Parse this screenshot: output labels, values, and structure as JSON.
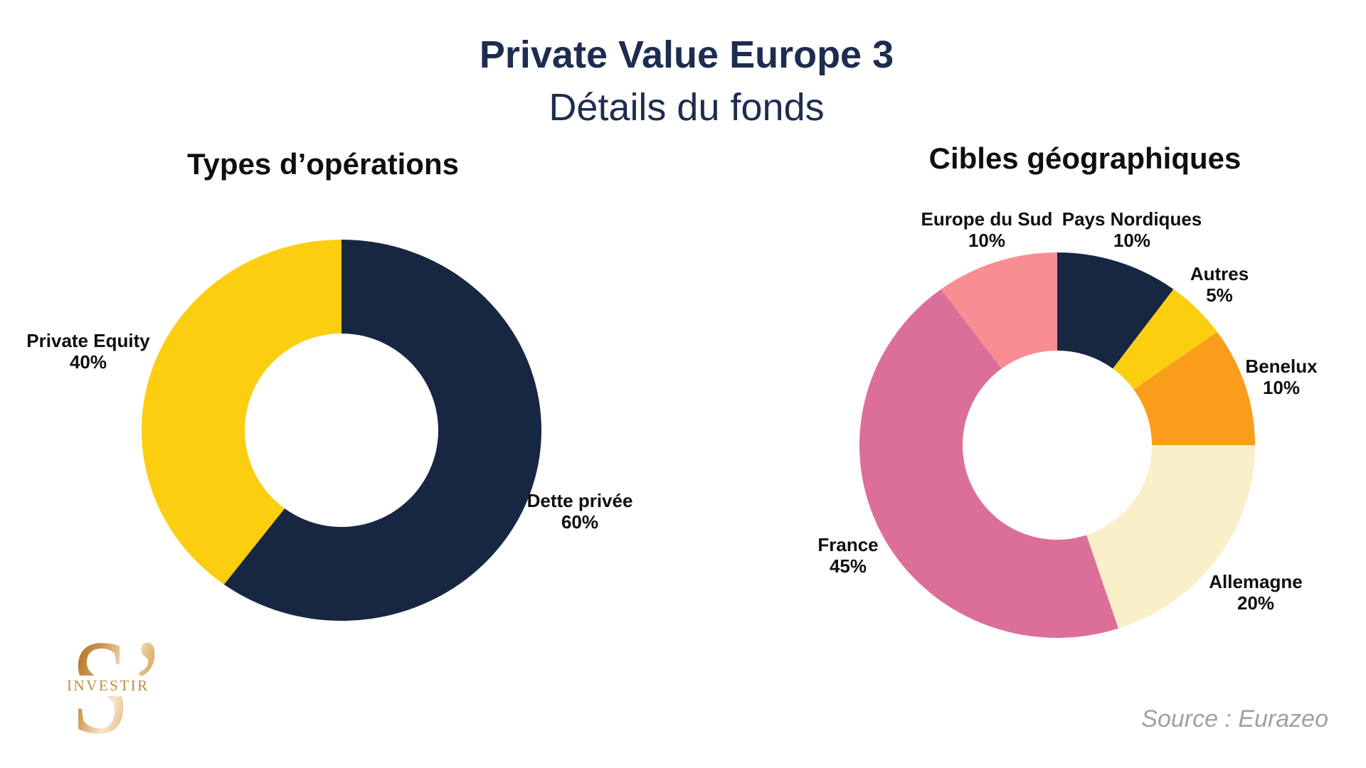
{
  "header": {
    "title": "Private Value Europe 3",
    "subtitle": "Détails du fonds"
  },
  "source": "Source : Eurazeo",
  "logo": {
    "letter": "S’",
    "word": "INVESTIR"
  },
  "colors": {
    "navy": "#182741",
    "yellow": "#FCCE10",
    "orange": "#F99D1B",
    "cream": "#F9EFC9",
    "pink": "#DC6F99",
    "salmon": "#F88E93",
    "title_navy": "#1D2D50",
    "text_black": "#0F0F0F",
    "source_gray": "#A0A0A0",
    "logo_gold": "#C08A43"
  },
  "chart_data": [
    {
      "type": "donut",
      "title": "Types d’opérations",
      "categories": [
        "Dette privée",
        "Private Equity"
      ],
      "values": [
        60,
        40
      ],
      "colors": [
        "#182741",
        "#FCCE10"
      ],
      "start_angle_deg": 0,
      "direction": "clockwise",
      "inner_radius_px": 136,
      "legend_position": "outside-labels",
      "labels": [
        {
          "name": "Dette privée",
          "pct": "60%"
        },
        {
          "name": "Private Equity",
          "pct": "40%"
        }
      ]
    },
    {
      "type": "donut",
      "title": "Cibles géographiques",
      "categories": [
        "Pays Nordiques",
        "Autres",
        "Benelux",
        "Allemagne",
        "France",
        "Europe du Sud"
      ],
      "values": [
        10,
        5,
        10,
        20,
        45,
        10
      ],
      "colors": [
        "#182741",
        "#FCCE10",
        "#F99D1B",
        "#F9EFC9",
        "#DC6F99",
        "#F88E93"
      ],
      "start_angle_deg": 0,
      "direction": "clockwise",
      "inner_radius_px": 133,
      "legend_position": "outside-labels",
      "labels": [
        {
          "name": "Pays Nordiques",
          "pct": "10%"
        },
        {
          "name": "Autres",
          "pct": "5%"
        },
        {
          "name": "Benelux",
          "pct": "10%"
        },
        {
          "name": "Allemagne",
          "pct": "20%"
        },
        {
          "name": "France",
          "pct": "45%"
        },
        {
          "name": "Europe du Sud",
          "pct": "10%"
        }
      ]
    }
  ]
}
